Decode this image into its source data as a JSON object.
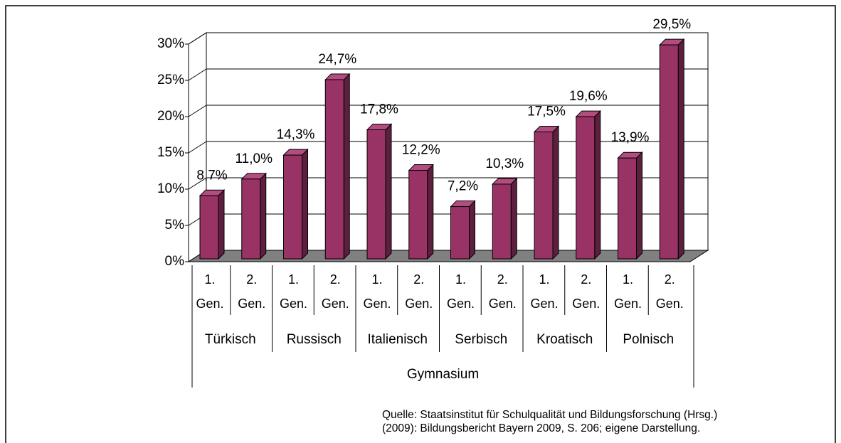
{
  "chart_data": {
    "type": "bar3d",
    "categories": [
      "1. Gen.",
      "2. Gen.",
      "1. Gen.",
      "2. Gen.",
      "1. Gen.",
      "2. Gen.",
      "1. Gen.",
      "2. Gen.",
      "1. Gen.",
      "2. Gen.",
      "1. Gen.",
      "2. Gen."
    ],
    "groups": [
      "Türkisch",
      "Russisch",
      "Italienisch",
      "Serbisch",
      "Kroatisch",
      "Polnisch"
    ],
    "supergroup": "Gymnasium",
    "values": [
      8.7,
      11.0,
      14.3,
      24.7,
      17.8,
      12.2,
      7.2,
      10.3,
      17.5,
      19.6,
      13.9,
      29.5
    ],
    "value_labels": [
      "8,7%",
      "11,0%",
      "14,3%",
      "24,7%",
      "17,8%",
      "12,2%",
      "7,2%",
      "10,3%",
      "17,5%",
      "19,6%",
      "13,9%",
      "29,5%"
    ],
    "color": "#993366",
    "ylim": [
      0,
      30
    ],
    "yticks": [
      {
        "value": 0,
        "label": "0%"
      },
      {
        "value": 5,
        "label": "5%"
      },
      {
        "value": 10,
        "label": "10%"
      },
      {
        "value": 15,
        "label": "15%"
      },
      {
        "value": 20,
        "label": "20%"
      },
      {
        "value": 25,
        "label": "25%"
      },
      {
        "value": 30,
        "label": "30%"
      }
    ],
    "grid": true,
    "source": [
      "Quelle: Staatsinstitut für Schulqualität und Bildungsforschung (Hrsg.)",
      "(2009): Bildungsbericht Bayern 2009, S. 206; eigene Darstellung."
    ]
  }
}
